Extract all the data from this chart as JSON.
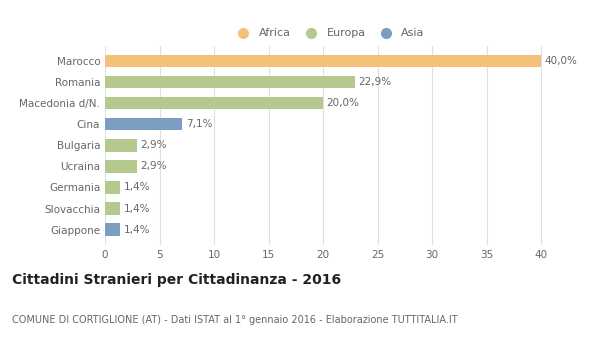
{
  "categories": [
    "Marocco",
    "Romania",
    "Macedonia d/N.",
    "Cina",
    "Bulgaria",
    "Ucraina",
    "Germania",
    "Slovacchia",
    "Giappone"
  ],
  "values": [
    40.0,
    22.9,
    20.0,
    7.1,
    2.9,
    2.9,
    1.4,
    1.4,
    1.4
  ],
  "labels": [
    "40,0%",
    "22,9%",
    "20,0%",
    "7,1%",
    "2,9%",
    "2,9%",
    "1,4%",
    "1,4%",
    "1,4%"
  ],
  "colors": [
    "#F5C07A",
    "#B5C98E",
    "#B5C98E",
    "#7B9DC0",
    "#B5C98E",
    "#B5C98E",
    "#B5C98E",
    "#B5C98E",
    "#7B9DC0"
  ],
  "legend_items": [
    {
      "label": "Africa",
      "color": "#F5C07A"
    },
    {
      "label": "Europa",
      "color": "#B5C98E"
    },
    {
      "label": "Asia",
      "color": "#7B9DC0"
    }
  ],
  "xlim": [
    0,
    41
  ],
  "xticks": [
    0,
    5,
    10,
    15,
    20,
    25,
    30,
    35,
    40
  ],
  "title_bold": "Cittadini Stranieri per Cittadinanza - 2016",
  "subtitle": "COMUNE DI CORTIGLIONE (AT) - Dati ISTAT al 1° gennaio 2016 - Elaborazione TUTTITALIA.IT",
  "background_color": "#ffffff",
  "plot_bg_color": "#ffffff",
  "grid_color": "#e0e0e0",
  "bar_height": 0.6,
  "label_fontsize": 7.5,
  "tick_fontsize": 7.5,
  "title_fontsize": 10,
  "subtitle_fontsize": 7
}
